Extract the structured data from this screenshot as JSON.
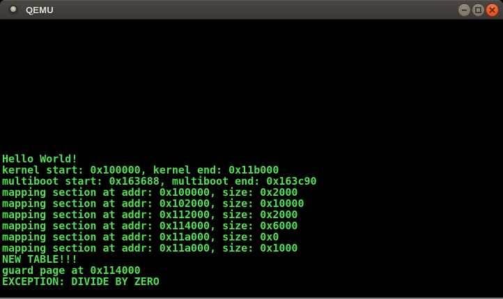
{
  "window": {
    "title": "QEMU",
    "icon": "window-sphere-icon",
    "controls": {
      "minimize_icon": "minus",
      "maximize_icon": "square-outline",
      "close_icon": "x-cross"
    }
  },
  "colors": {
    "titlebar_top": "#4b4743",
    "titlebar_bottom": "#3a3734",
    "title_text": "#e6e2da",
    "button_gray": "#8a8377",
    "button_close_orange": "#e64e1c",
    "screen_background": "#000000",
    "terminal_green": "#4fe24f"
  },
  "terminal": {
    "foreground": "#4fe24f",
    "background": "#000000",
    "lines": [
      "Hello World!",
      "kernel start: 0x100000, kernel end: 0x11b000",
      "multiboot start: 0x163688, multiboot end: 0x163c90",
      "mapping section at addr: 0x100000, size: 0x2000",
      "mapping section at addr: 0x102000, size: 0x10000",
      "mapping section at addr: 0x112000, size: 0x2000",
      "mapping section at addr: 0x114000, size: 0x6000",
      "mapping section at addr: 0x11a000, size: 0x0",
      "mapping section at addr: 0x11a000, size: 0x1000",
      "NEW TABLE!!!",
      "guard page at 0x114000",
      "EXCEPTION: DIVIDE BY ZERO"
    ]
  }
}
